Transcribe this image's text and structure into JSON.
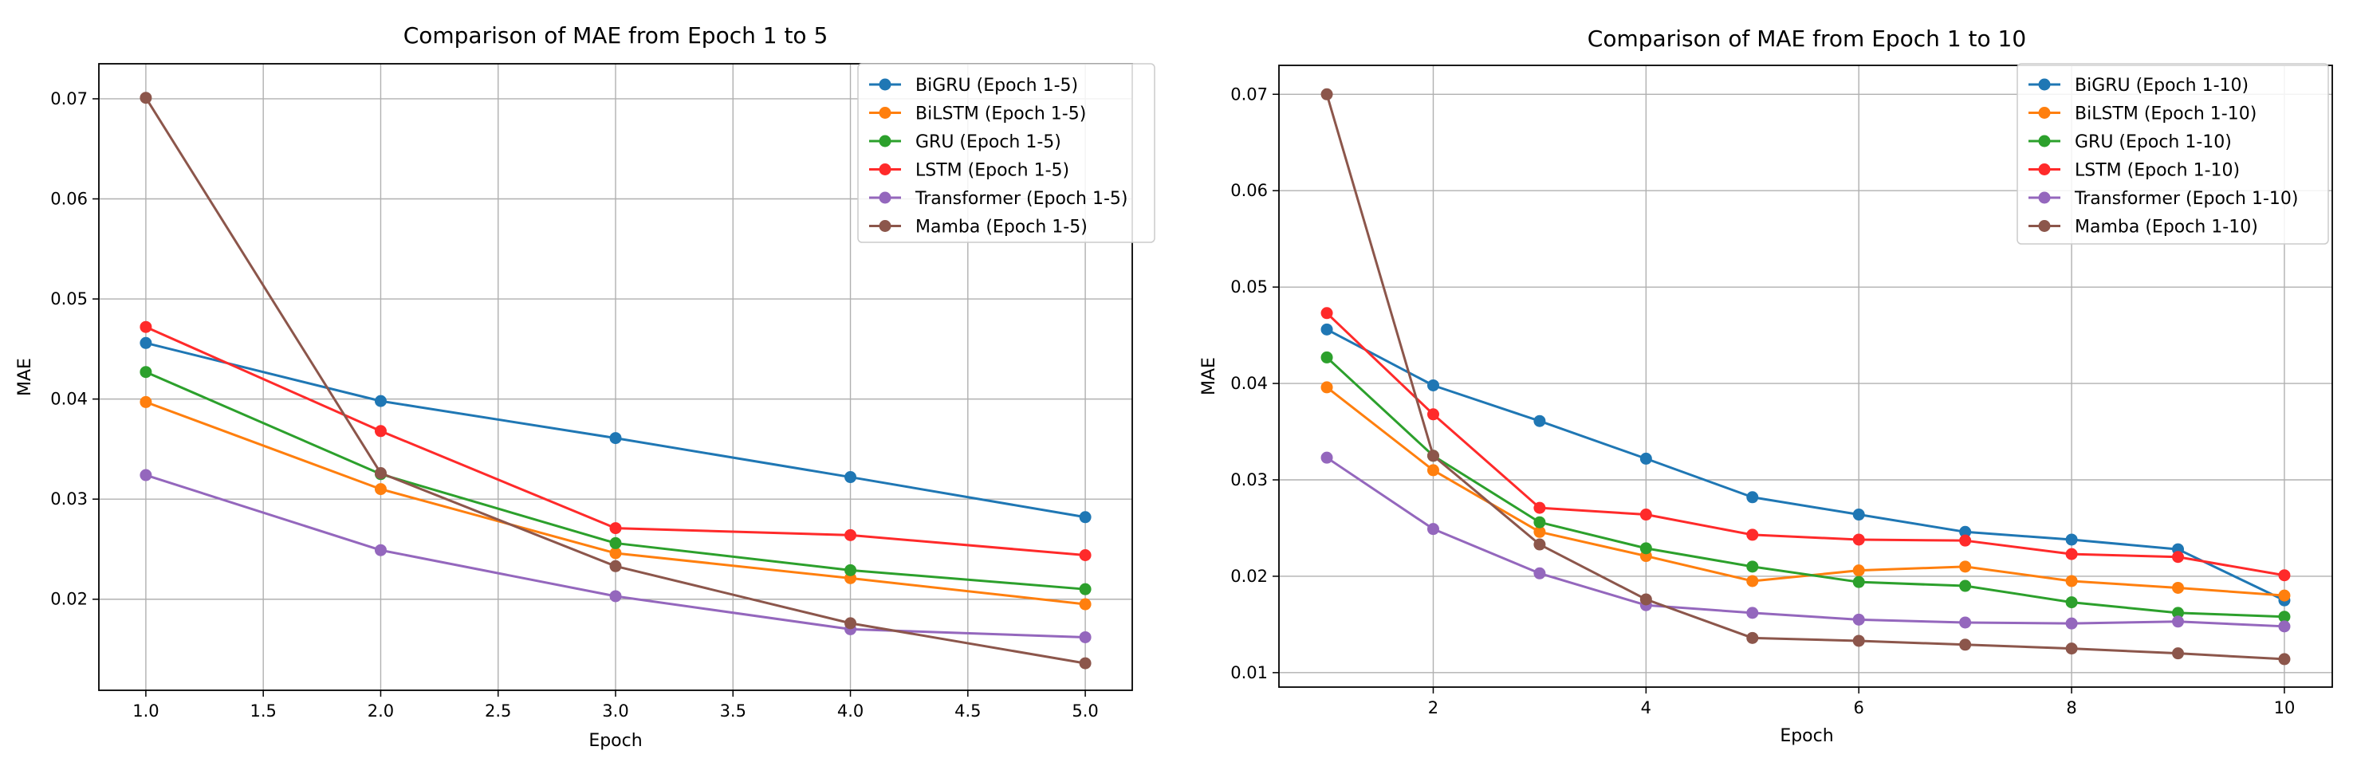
{
  "chart_data": [
    {
      "type": "line",
      "title": "Comparison of MAE from Epoch 1 to 5",
      "xlabel": "Epoch",
      "ylabel": "MAE",
      "x": [
        1,
        2,
        3,
        4,
        5
      ],
      "xlim": [
        0.8,
        5.2
      ],
      "ylim": [
        0.0109,
        0.0735
      ],
      "xticks": [
        1.0,
        1.5,
        2.0,
        2.5,
        3.0,
        3.5,
        4.0,
        4.5,
        5.0
      ],
      "xtick_labels": [
        "1.0",
        "1.5",
        "2.0",
        "2.5",
        "3.0",
        "3.5",
        "4.0",
        "4.5",
        "5.0"
      ],
      "yticks": [
        0.02,
        0.03,
        0.04,
        0.05,
        0.06,
        0.07
      ],
      "ytick_labels": [
        "0.02",
        "0.03",
        "0.04",
        "0.05",
        "0.06",
        "0.07"
      ],
      "grid": true,
      "legend_position": "top-right",
      "series": [
        {
          "name": "BiGRU (Epoch 1-5)",
          "color": "#1f77b4",
          "values": [
            0.0456,
            0.0398,
            0.0361,
            0.0322,
            0.0282
          ]
        },
        {
          "name": "BiLSTM (Epoch 1-5)",
          "color": "#ff7f0e",
          "values": [
            0.0397,
            0.031,
            0.0246,
            0.0221,
            0.0195
          ]
        },
        {
          "name": "GRU (Epoch 1-5)",
          "color": "#2ca02c",
          "values": [
            0.0427,
            0.0325,
            0.0256,
            0.0229,
            0.021
          ]
        },
        {
          "name": "LSTM (Epoch 1-5)",
          "color": "#ff2a2a",
          "values": [
            0.0472,
            0.0368,
            0.0271,
            0.0264,
            0.0244
          ]
        },
        {
          "name": "Transformer (Epoch 1-5)",
          "color": "#9467bd",
          "values": [
            0.0324,
            0.0249,
            0.0203,
            0.017,
            0.0162
          ]
        },
        {
          "name": "Mamba (Epoch 1-5)",
          "color": "#8c564b",
          "values": [
            0.0701,
            0.0326,
            0.0233,
            0.0176,
            0.0136
          ]
        }
      ]
    },
    {
      "type": "line",
      "title": "Comparison of MAE from Epoch 1 to 10",
      "xlabel": "Epoch",
      "ylabel": "MAE",
      "x": [
        1,
        2,
        3,
        4,
        5,
        6,
        7,
        8,
        9,
        10
      ],
      "xlim": [
        0.55,
        10.45
      ],
      "ylim": [
        0.0085,
        0.073
      ],
      "xticks": [
        2,
        4,
        6,
        8,
        10
      ],
      "xtick_labels": [
        "2",
        "4",
        "6",
        "8",
        "10"
      ],
      "yticks": [
        0.01,
        0.02,
        0.03,
        0.04,
        0.05,
        0.06,
        0.07
      ],
      "ytick_labels": [
        "0.01",
        "0.02",
        "0.03",
        "0.04",
        "0.05",
        "0.06",
        "0.07"
      ],
      "grid": true,
      "legend_position": "top-right",
      "series": [
        {
          "name": "BiGRU (Epoch 1-10)",
          "color": "#1f77b4",
          "values": [
            0.0456,
            0.0398,
            0.0361,
            0.0322,
            0.0282,
            0.0264,
            0.0246,
            0.0238,
            0.0228,
            0.0175
          ]
        },
        {
          "name": "BiLSTM (Epoch 1-10)",
          "color": "#ff7f0e",
          "values": [
            0.0396,
            0.031,
            0.0246,
            0.0221,
            0.0195,
            0.0206,
            0.021,
            0.0195,
            0.0188,
            0.018
          ]
        },
        {
          "name": "GRU (Epoch 1-10)",
          "color": "#2ca02c",
          "values": [
            0.0427,
            0.0325,
            0.0256,
            0.0229,
            0.021,
            0.0194,
            0.019,
            0.0173,
            0.0162,
            0.0158
          ]
        },
        {
          "name": "LSTM (Epoch 1-10)",
          "color": "#ff2a2a",
          "values": [
            0.0473,
            0.0368,
            0.0271,
            0.0264,
            0.0243,
            0.0238,
            0.0237,
            0.0223,
            0.022,
            0.0201
          ]
        },
        {
          "name": "Transformer (Epoch 1-10)",
          "color": "#9467bd",
          "values": [
            0.0323,
            0.0249,
            0.0203,
            0.017,
            0.0162,
            0.0155,
            0.0152,
            0.0151,
            0.0153,
            0.0148
          ]
        },
        {
          "name": "Mamba (Epoch 1-10)",
          "color": "#8c564b",
          "values": [
            0.07,
            0.0325,
            0.0233,
            0.0176,
            0.0136,
            0.0133,
            0.0129,
            0.0125,
            0.012,
            0.0114
          ]
        }
      ]
    }
  ]
}
